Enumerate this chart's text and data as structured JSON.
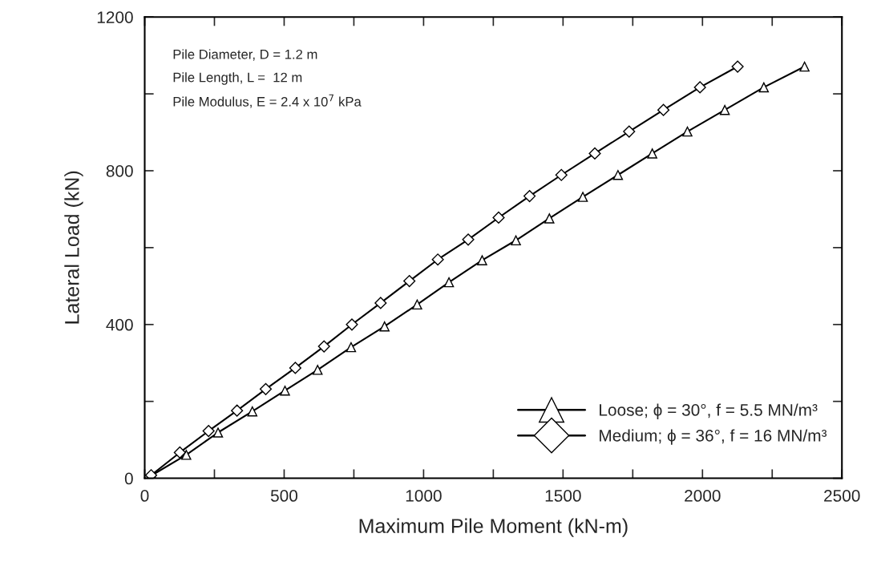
{
  "chart_data": {
    "type": "line",
    "xlabel": "Maximum Pile Moment (kN-m)",
    "ylabel": "Lateral Load (kN)",
    "xlim": [
      0,
      2500
    ],
    "ylim": [
      0,
      1200
    ],
    "xticks": [
      0,
      {
        "value": 250,
        "label": null
      },
      500,
      {
        "value": 750,
        "label": null
      },
      1000,
      {
        "value": 1250,
        "label": null
      },
      1500,
      {
        "value": 1750,
        "label": null
      },
      2000,
      {
        "value": 2250,
        "label": null
      },
      2500
    ],
    "yticks": [
      0,
      {
        "value": 200,
        "label": null
      },
      400,
      {
        "value": 600,
        "label": null
      },
      800,
      {
        "value": 1000,
        "label": null
      },
      1200
    ],
    "grid": false,
    "legend": "bottom right",
    "annotations": [
      "Pile Diameter, D = 1.2 m",
      "Pile Length, L =  12 m",
      "Pile Modulus, E = 2.4 x 10$^{7}$ kPa"
    ],
    "series": [
      {
        "name": "Loose; ϕ = 30°, f = 5.5 MN/m³",
        "color": "#000000",
        "marker": "triangle",
        "x": [
          26,
          149,
          263,
          386,
          503,
          620,
          740,
          860,
          977,
          1091,
          1210,
          1331,
          1451,
          1571,
          1697,
          1820,
          1946,
          2080,
          2220,
          2366
        ],
        "values": [
          8,
          61,
          119,
          174,
          228,
          282,
          341,
          395,
          452,
          510,
          567,
          619,
          676,
          732,
          789,
          845,
          902,
          958,
          1017,
          1071
        ]
      },
      {
        "name": "Medium; ϕ = 36°, f = 16 MN/m³",
        "color": "#000000",
        "marker": "diamond",
        "x": [
          23,
          126,
          229,
          331,
          434,
          540,
          643,
          743,
          846,
          949,
          1051,
          1160,
          1269,
          1380,
          1494,
          1614,
          1737,
          1860,
          1991,
          2126
        ],
        "values": [
          8,
          67,
          123,
          176,
          232,
          287,
          343,
          400,
          456,
          513,
          569,
          621,
          678,
          734,
          789,
          845,
          902,
          958,
          1017,
          1071
        ]
      }
    ]
  }
}
